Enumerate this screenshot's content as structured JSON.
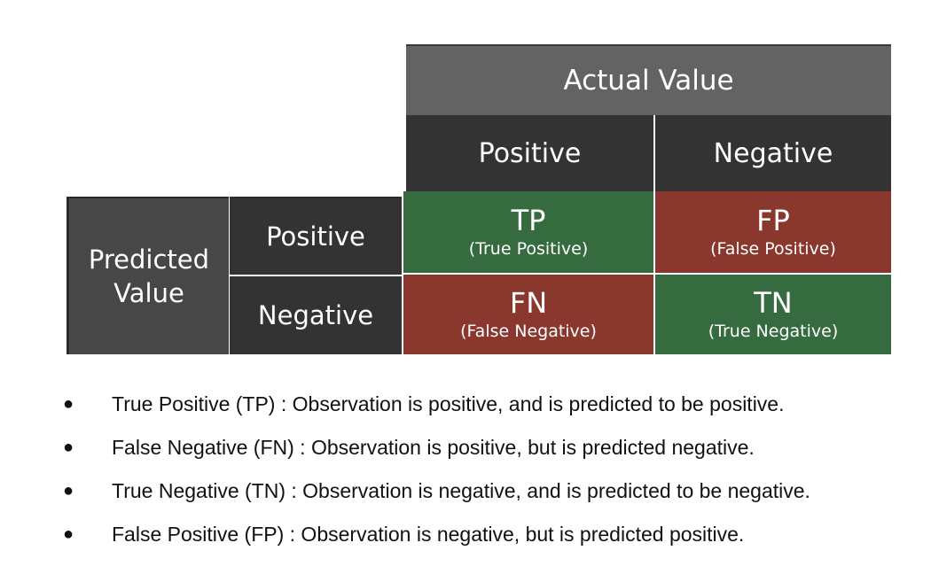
{
  "matrix": {
    "actual_header": "Actual Value",
    "predicted_header": "Predicted Value",
    "columns": [
      "Positive",
      "Negative"
    ],
    "rows": [
      "Positive",
      "Negative"
    ],
    "cells": {
      "tp": {
        "abbr": "TP",
        "full": "(True Positive)"
      },
      "fp": {
        "abbr": "FP",
        "full": "(False Positive)"
      },
      "fn": {
        "abbr": "FN",
        "full": "(False Negative)"
      },
      "tn": {
        "abbr": "TN",
        "full": "(True Negative)"
      }
    },
    "colors": {
      "correct": "#356b3f",
      "error": "#8a372d",
      "header_dark": "#333333",
      "header_mid": "#636363",
      "header_side": "#474747"
    }
  },
  "definitions": [
    "True Positive (TP) : Observation is positive, and is predicted to be positive.",
    "False Negative (FN) : Observation is positive, but is predicted negative.",
    "True Negative (TN) : Observation is negative, and is predicted to be negative.",
    "False Positive (FP) : Observation is negative, but is predicted positive."
  ],
  "bullet": "●"
}
